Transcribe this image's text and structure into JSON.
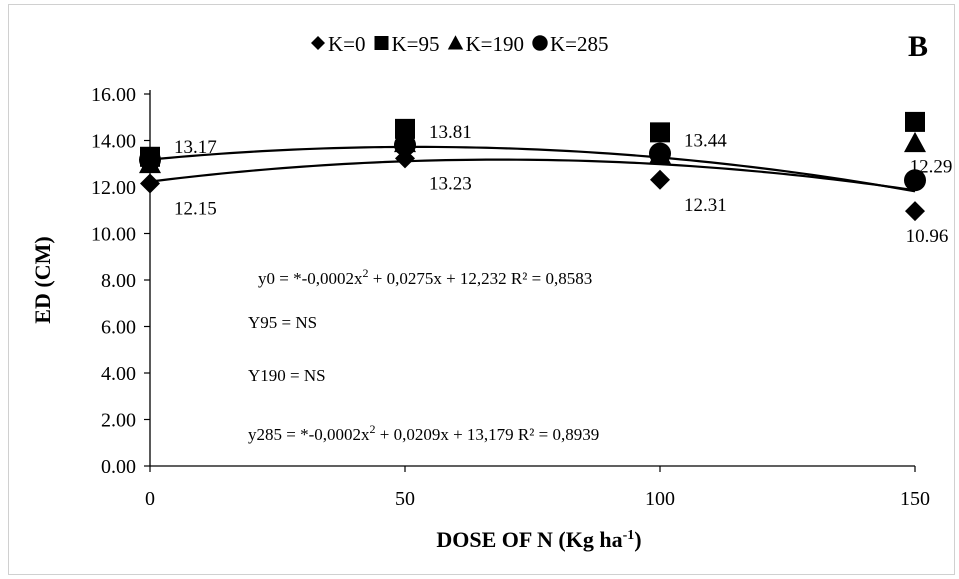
{
  "chart_data": {
    "type": "scatter",
    "panel_label": "B",
    "xlabel": "DOSE OF N (Kg ha",
    "xlabel_sup": "-1",
    "xlabel_close": ")",
    "ylabel": "ED (CM)",
    "xlim": [
      0,
      150
    ],
    "ylim": [
      0,
      16
    ],
    "x_ticks": [
      "0",
      "50",
      "100",
      "150"
    ],
    "y_ticks": [
      "0.00",
      "2.00",
      "4.00",
      "6.00",
      "8.00",
      "10.00",
      "12.00",
      "14.00",
      "16.00"
    ],
    "x": [
      0,
      50,
      100,
      150
    ],
    "legend_position": "top-center",
    "grid": false,
    "series": [
      {
        "name": "K=0",
        "marker": "diamond",
        "values": [
          12.15,
          13.23,
          12.31,
          10.96
        ]
      },
      {
        "name": "K=95",
        "marker": "square",
        "values": [
          13.3,
          14.5,
          14.35,
          14.8
        ]
      },
      {
        "name": "K=190",
        "marker": "triangle",
        "values": [
          13.0,
          13.9,
          13.4,
          13.9
        ]
      },
      {
        "name": "K=285",
        "marker": "circle",
        "values": [
          13.17,
          13.81,
          13.44,
          12.29
        ]
      }
    ],
    "trendlines": [
      {
        "series": "K=0",
        "coeffs": [
          -0.0002,
          0.0275,
          12.232
        ]
      },
      {
        "series": "K=285",
        "coeffs": [
          -0.0002,
          0.0209,
          13.179
        ]
      }
    ],
    "data_labels": [
      {
        "text": "13.17",
        "x": 0,
        "y": 13.17,
        "pos": "right-above"
      },
      {
        "text": "13.81",
        "x": 50,
        "y": 13.81,
        "pos": "right-above"
      },
      {
        "text": "13.44",
        "x": 100,
        "y": 13.44,
        "pos": "right-above"
      },
      {
        "text": "12.29",
        "x": 150,
        "y": 12.29,
        "pos": "above"
      },
      {
        "text": "12.15",
        "x": 0,
        "y": 12.15,
        "pos": "right-below"
      },
      {
        "text": "13.23",
        "x": 50,
        "y": 13.23,
        "pos": "right-below"
      },
      {
        "text": "12.31",
        "x": 100,
        "y": 12.31,
        "pos": "right-below"
      },
      {
        "text": "10.96",
        "x": 150,
        "y": 10.96,
        "pos": "below"
      }
    ],
    "annotations": {
      "eq0_a": "y0 = *-0,0002x",
      "eq0_b": " + 0,0275x + 12,232  R² = 0,8583",
      "eq95": "Y95 = NS",
      "eq190": "Y190 =  NS",
      "eq285_a": "y285 = *-0,0002x",
      "eq285_b": " + 0,0209x + 13,179  R² = 0,8939",
      "sup2": "2"
    }
  }
}
